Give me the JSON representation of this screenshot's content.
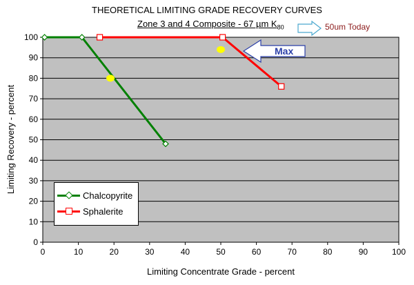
{
  "chart_data": {
    "type": "line",
    "title": "THEORETICAL LIMITING GRADE RECOVERY CURVES",
    "subtitle": "Zone 3 and 4 Composite - 67 µm K",
    "subtitle_subscript": "80",
    "xlabel": "Limiting Concentrate Grade - percent",
    "ylabel": "Limiting Recovery - percent",
    "xlim": [
      0,
      100
    ],
    "ylim": [
      0,
      100
    ],
    "x_ticks": [
      "0",
      "10",
      "20",
      "30",
      "40",
      "50",
      "60",
      "70",
      "80",
      "90",
      "100"
    ],
    "y_ticks": [
      "0",
      "10",
      "20",
      "30",
      "40",
      "50",
      "60",
      "70",
      "80",
      "90",
      "100"
    ],
    "grid": true,
    "plot_background": "#c0c0c0",
    "legend_position": "bottom-left",
    "series": [
      {
        "name": "Chalcopyrite",
        "color": "#008000",
        "marker": "diamond",
        "points": [
          [
            0.5,
            100
          ],
          [
            11,
            100
          ],
          [
            34.5,
            48
          ]
        ]
      },
      {
        "name": "Sphalerite",
        "color": "#ff0000",
        "marker": "square",
        "points": [
          [
            16,
            100
          ],
          [
            50.5,
            100
          ],
          [
            67,
            76
          ]
        ]
      }
    ],
    "highlight_points": [
      {
        "x": 19,
        "y": 80,
        "color": "#ffff00"
      },
      {
        "x": 50,
        "y": 94,
        "color": "#ffff00"
      }
    ],
    "annotations": {
      "callout_text": "50um Today",
      "max_label": "Max"
    }
  }
}
